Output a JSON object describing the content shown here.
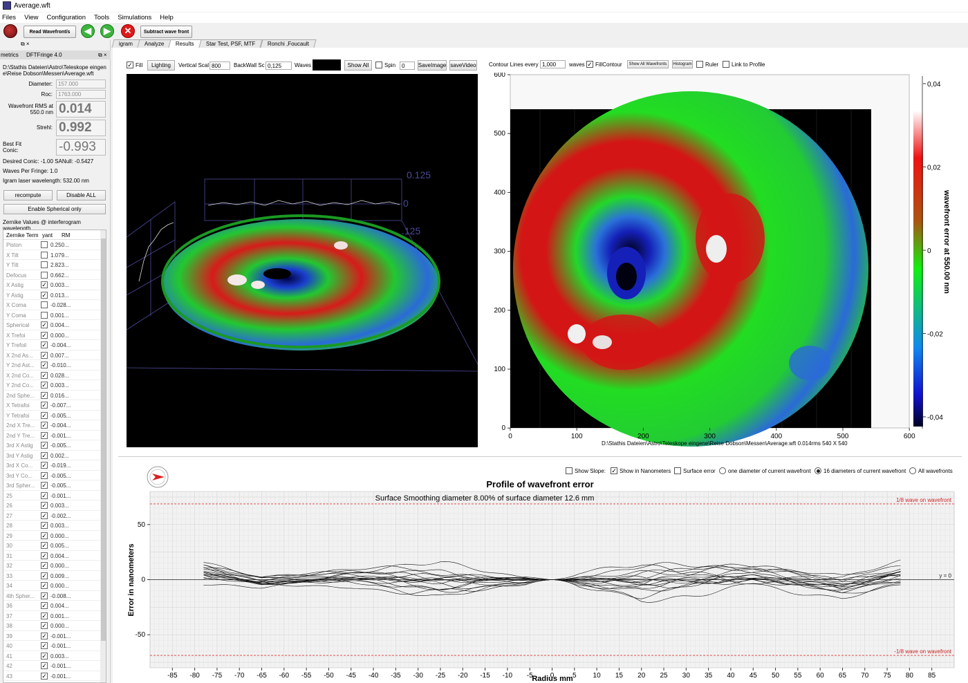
{
  "window": {
    "title": "Average.wft"
  },
  "menu": [
    "Files",
    "View",
    "Configuration",
    "Tools",
    "Simulations",
    "Help"
  ],
  "toolbar": {
    "read_label": "Read Wavefront/s",
    "subtract_label": "Subtract wave front"
  },
  "left": {
    "header_left": "metrics",
    "header_right": "DFTFringe 4.0",
    "path": "D:\\Stathis Dateien\\Astro\\Teleskope eingene\\Reise Dobson\\Messen\\Average.wft",
    "diameter_label": "Diameter:",
    "diameter_value": "157.000",
    "roc_label": "Roc:",
    "roc_value": "1763.000",
    "rms_label": "Wavefront RMS at 550.0 nm",
    "rms_value": "0.014",
    "strehl_label": "Strehl:",
    "strehl_value": "0.992",
    "conic_label": "Best Fit Conic:",
    "conic_value": "-0.993",
    "desired_conic": "Desired Conic:  -1.00 SANull:  -0.5427",
    "waves_per_fringe": "Waves Per Fringe: 1.0",
    "igram_wavelength": "Igram laser wavelength: 532.00 nm",
    "recompute_label": "recompute",
    "disable_all_label": "Disable ALL",
    "enable_spherical_label": "Enable Spherical only",
    "zernike_heading": "Zernike Values @ interferogram wavelength",
    "table_headers": [
      "Zernike Term",
      "yant",
      "RM"
    ],
    "zernike": [
      {
        "name": "Piston",
        "checked": false,
        "value": "0.250..."
      },
      {
        "name": "X Tilt",
        "checked": false,
        "value": "1.079..."
      },
      {
        "name": "Y Tilt",
        "checked": false,
        "value": "2.823..."
      },
      {
        "name": "Defocus",
        "checked": false,
        "value": "0.662..."
      },
      {
        "name": "X Astig",
        "checked": true,
        "value": "0.003..."
      },
      {
        "name": "Y Astig",
        "checked": true,
        "value": "0.013..."
      },
      {
        "name": "X Coma",
        "checked": false,
        "value": "-0.028..."
      },
      {
        "name": "Y Coma",
        "checked": false,
        "value": "0.001..."
      },
      {
        "name": "Spherical",
        "checked": true,
        "value": "0.004..."
      },
      {
        "name": "X Trefoi",
        "checked": true,
        "value": "0.000..."
      },
      {
        "name": "Y Trefoil",
        "checked": true,
        "value": "-0.004..."
      },
      {
        "name": "X 2nd As...",
        "checked": true,
        "value": "0.007..."
      },
      {
        "name": "Y 2nd Ast...",
        "checked": true,
        "value": "-0.010..."
      },
      {
        "name": "X 2nd Co...",
        "checked": true,
        "value": "0.028..."
      },
      {
        "name": "Y 2nd Co...",
        "checked": true,
        "value": "0.003..."
      },
      {
        "name": "2nd Sphe...",
        "checked": true,
        "value": "0.016..."
      },
      {
        "name": "X Tetrafoi",
        "checked": true,
        "value": "-0.007..."
      },
      {
        "name": "Y Tetrafoi",
        "checked": true,
        "value": "-0.005..."
      },
      {
        "name": "2nd X Tre...",
        "checked": true,
        "value": "-0.004..."
      },
      {
        "name": "2nd Y Tre...",
        "checked": true,
        "value": "-0.001..."
      },
      {
        "name": "3rd X Astig",
        "checked": true,
        "value": "-0.005..."
      },
      {
        "name": "3rd Y Astig",
        "checked": true,
        "value": "0.002..."
      },
      {
        "name": "3rd X Co...",
        "checked": true,
        "value": "-0.019..."
      },
      {
        "name": "3rd Y Co...",
        "checked": true,
        "value": "-0.005..."
      },
      {
        "name": "3rd Spher...",
        "checked": true,
        "value": "-0.005..."
      },
      {
        "name": "25",
        "checked": true,
        "value": "-0.001..."
      },
      {
        "name": "26",
        "checked": true,
        "value": "0.003..."
      },
      {
        "name": "27",
        "checked": true,
        "value": "-0.002..."
      },
      {
        "name": "28",
        "checked": true,
        "value": "0.003..."
      },
      {
        "name": "29",
        "checked": true,
        "value": "0.000..."
      },
      {
        "name": "30",
        "checked": true,
        "value": "0.005..."
      },
      {
        "name": "31",
        "checked": true,
        "value": "0.004..."
      },
      {
        "name": "32",
        "checked": true,
        "value": "0.000..."
      },
      {
        "name": "33",
        "checked": true,
        "value": "0.009..."
      },
      {
        "name": "34",
        "checked": true,
        "value": "0.000..."
      },
      {
        "name": "4th Spher...",
        "checked": true,
        "value": "-0.008..."
      },
      {
        "name": "36",
        "checked": true,
        "value": "0.004..."
      },
      {
        "name": "37",
        "checked": true,
        "value": "0.001..."
      },
      {
        "name": "38",
        "checked": true,
        "value": "0.000..."
      },
      {
        "name": "39",
        "checked": true,
        "value": "-0.001..."
      },
      {
        "name": "40",
        "checked": true,
        "value": "-0.001..."
      },
      {
        "name": "41",
        "checked": true,
        "value": "0.003..."
      },
      {
        "name": "42",
        "checked": true,
        "value": "-0.001..."
      },
      {
        "name": "43",
        "checked": true,
        "value": "-0.001..."
      }
    ]
  },
  "tabs": [
    "igram",
    "Analyze",
    "Results",
    "Star Test, PSF, MTF",
    "Ronchi ,Foucault"
  ],
  "view3d": {
    "fill_label": "Fill",
    "lighting_label": "Lighting",
    "vscale_label": "Vertical Scal",
    "vscale_value": "800",
    "backwall_label": "BackWall Sc",
    "backwall_value": "0,125",
    "waves_label": "Waves",
    "show_all_label": "Show All",
    "spin_label": "Spin",
    "spin_value": "0",
    "save_image_label": "SaveImage",
    "save_video_label": "saveVideo",
    "axis_top": "0.125",
    "axis_mid": "0",
    "axis_bot": ".125"
  },
  "contour": {
    "every_label": "Contour Lines every",
    "every_value": "1,000",
    "waves_label": "waves",
    "fill_label": "FillContour",
    "show_all_label": "Show All Wavefronts",
    "histogram_label": "Histogram",
    "ruler_label": "Ruler",
    "link_label": "Link to Profile",
    "y_ticks": [
      "600",
      "500",
      "400",
      "300",
      "200",
      "100",
      "0"
    ],
    "x_ticks": [
      "0",
      "100",
      "200",
      "300",
      "400",
      "500",
      "600"
    ],
    "caption": "D:\\Stathis Dateien\\Astro\\Teleskope eingene\\Reise Dobson\\Messen\\Average.wft  0.014rms 540 X 540",
    "cbar_ticks": [
      "0,04",
      "0,02",
      "0",
      "-0,02",
      "-0,04"
    ],
    "cbar_label": "wavefront error at 550.00 nm"
  },
  "profile": {
    "show_slope": "Show Slope:",
    "show_nm": "Show in Nanometers",
    "surface_error": "Surface error",
    "one_diameter": "one diameter of current wavefront",
    "sixteen_diameters": "16 diameters of current wavefront",
    "all_wavefronts": "All wavefronts",
    "title": "Profile of wavefront error",
    "smoothing": "Surface Smoothing diameter   8.00% of surface diameter   12.6 mm",
    "upper_ref": "1/8 wave on wavefront",
    "lower_ref": "-1/8 wave on wavefront",
    "zero_label": "y = 0",
    "ylabel": "Error in nanometers",
    "xlabel": "Radius mm"
  },
  "chart_data": {
    "type": "line",
    "title": "Profile of wavefront error",
    "xlabel": "Radius mm",
    "ylabel": "Error in nanometers",
    "xlim": [
      -90,
      90
    ],
    "ylim": [
      -80,
      80
    ],
    "x_ticks": [
      -85,
      -80,
      -75,
      -70,
      -65,
      -60,
      -55,
      -50,
      -45,
      -40,
      -35,
      -30,
      -25,
      -20,
      -15,
      -10,
      -5,
      0,
      5,
      10,
      15,
      20,
      25,
      30,
      35,
      40,
      45,
      50,
      55,
      60,
      65,
      70,
      75,
      80,
      85
    ],
    "y_ticks": [
      50,
      0,
      -50
    ],
    "reference_lines": [
      {
        "label": "1/8 wave on wavefront",
        "y": 68.75
      },
      {
        "label": "-1/8 wave on wavefront",
        "y": -68.75
      },
      {
        "label": "y = 0",
        "y": 0
      }
    ],
    "series_count": 16,
    "x_range": [
      -78,
      78
    ],
    "profile_envelope_nm": [
      {
        "x": -78,
        "min": -5,
        "max": 18
      },
      {
        "x": -65,
        "min": -10,
        "max": 5
      },
      {
        "x": -45,
        "min": -8,
        "max": 12
      },
      {
        "x": -25,
        "min": -20,
        "max": 18
      },
      {
        "x": 0,
        "min": -2,
        "max": 2
      },
      {
        "x": 20,
        "min": -22,
        "max": 18
      },
      {
        "x": 45,
        "min": -12,
        "max": 18
      },
      {
        "x": 65,
        "min": -18,
        "max": 6
      },
      {
        "x": 78,
        "min": -8,
        "max": 18
      }
    ]
  },
  "colors": {
    "accent_red": "#cc0000",
    "green_arrow": "#3db43d",
    "contour_green": "#22dd22",
    "plot_blue": "#4a4a9a"
  }
}
